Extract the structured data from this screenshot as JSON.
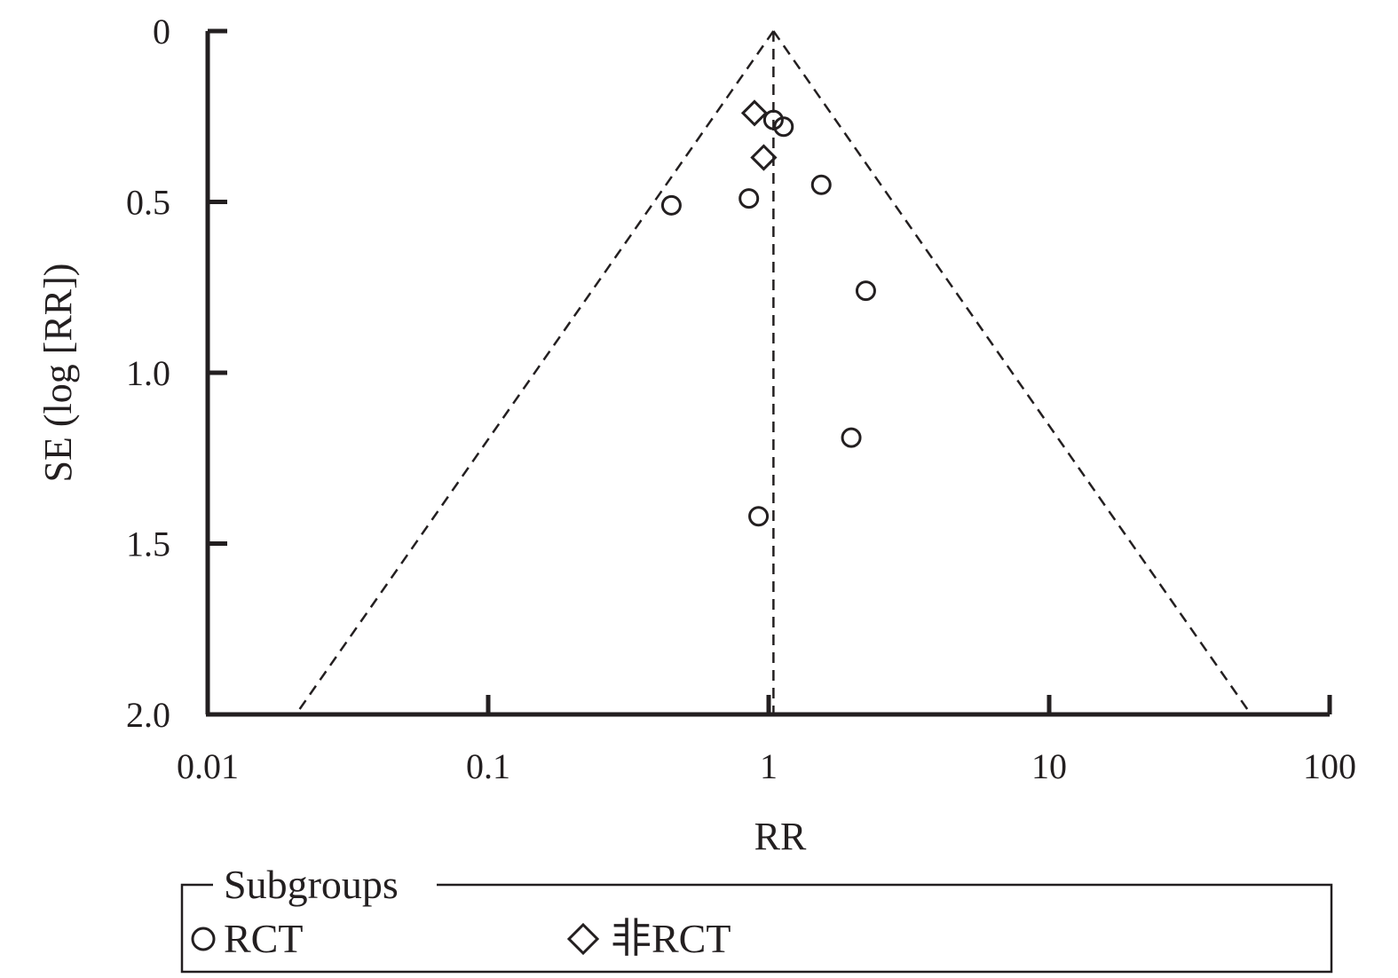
{
  "chart_data": {
    "type": "scatter",
    "subtype": "funnel-plot",
    "xlabel": "RR",
    "ylabel": "SE (log [RR])",
    "x_scale": "log",
    "xlim": [
      0.01,
      100
    ],
    "ylim": [
      0,
      2.0
    ],
    "y_inverted": true,
    "x_ticks": [
      0.01,
      0.1,
      1,
      10,
      100
    ],
    "x_tick_labels": [
      "0.01",
      "0.1",
      "1",
      "10",
      "100"
    ],
    "y_ticks": [
      0,
      0.5,
      1.0,
      1.5,
      2.0
    ],
    "y_tick_labels": [
      "0",
      "0.5",
      "1.0",
      "1.5",
      "2.0"
    ],
    "pooled_estimate": 1.04,
    "funnel_lines": "dashed",
    "legend": {
      "title": "Subgroups",
      "placement": "bottom",
      "items": [
        {
          "label": "RCT",
          "marker": "circle"
        },
        {
          "label": "非RCT",
          "marker": "diamond"
        }
      ]
    },
    "series": [
      {
        "name": "RCT",
        "marker": "circle",
        "points": [
          {
            "x": 1.04,
            "y": 0.26
          },
          {
            "x": 1.13,
            "y": 0.28
          },
          {
            "x": 0.45,
            "y": 0.51
          },
          {
            "x": 0.85,
            "y": 0.49
          },
          {
            "x": 1.54,
            "y": 0.45
          },
          {
            "x": 2.22,
            "y": 0.76
          },
          {
            "x": 1.97,
            "y": 1.19
          },
          {
            "x": 0.92,
            "y": 1.42
          }
        ]
      },
      {
        "name": "非RCT",
        "marker": "diamond",
        "points": [
          {
            "x": 0.89,
            "y": 0.24
          },
          {
            "x": 0.96,
            "y": 0.37
          }
        ]
      }
    ]
  }
}
